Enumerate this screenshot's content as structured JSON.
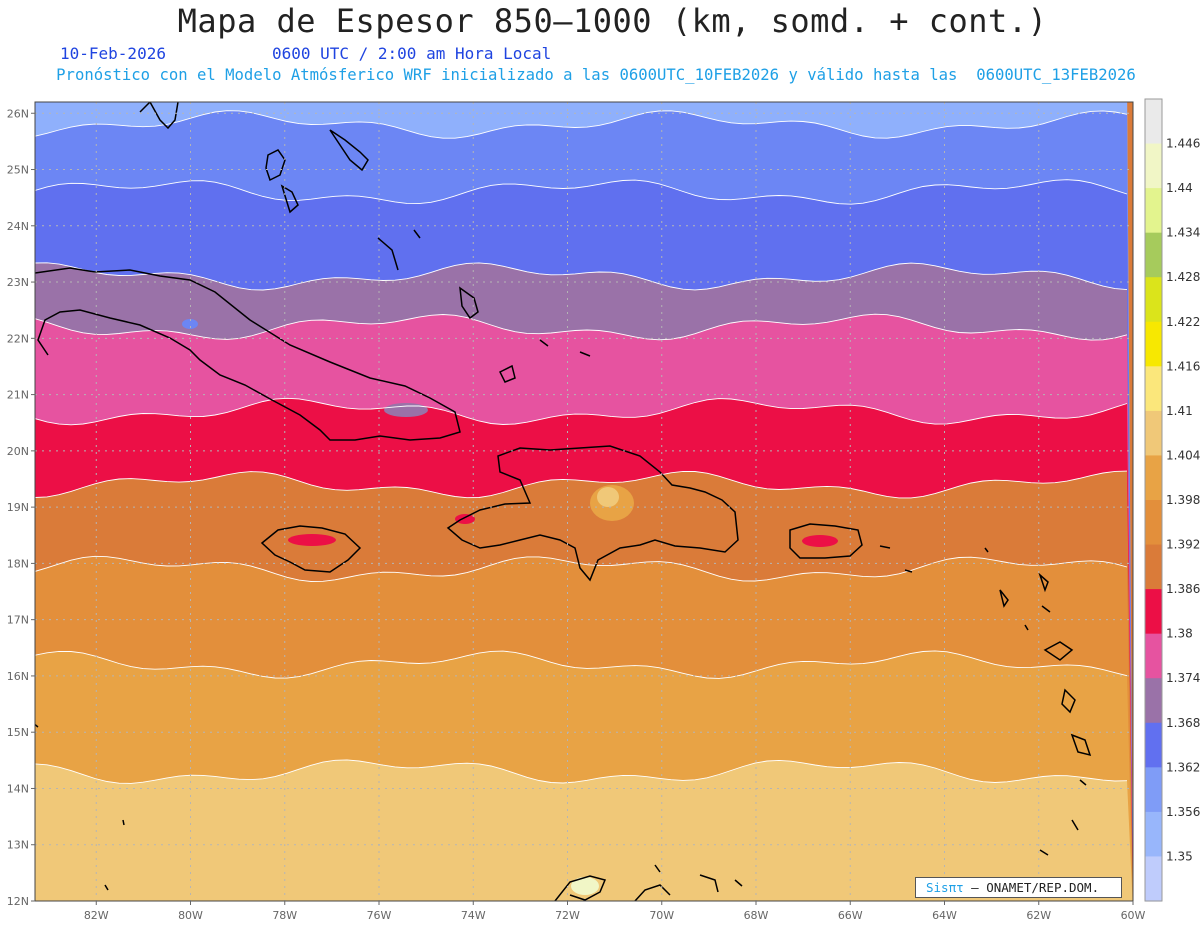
{
  "title": "Mapa de Espesor 850—1000 (km, somd. + cont.)",
  "date": "10-Feb-2026",
  "time": "0600 UTC / 2:00 am Hora Local",
  "subtitle": "Pronóstico con el Modelo Atmósferico WRF inicializado a las 0600UTC_10FEB2026 y válido hasta las  0600UTC_13FEB2026",
  "credit": {
    "sis": "Sisπτ",
    "org": " – ONAMET/REP.DOM."
  },
  "axes": {
    "lat_labels": [
      "26N",
      "25N",
      "24N",
      "23N",
      "22N",
      "21N",
      "20N",
      "19N",
      "18N",
      "17N",
      "16N",
      "15N",
      "14N",
      "13N",
      "12N"
    ],
    "lon_labels": [
      "82W",
      "80W",
      "78W",
      "76W",
      "74W",
      "72W",
      "70W",
      "68W",
      "66W",
      "64W",
      "62W",
      "60W"
    ],
    "lon_range": [
      -83.3,
      -60
    ],
    "lat_range": [
      12,
      26.2
    ],
    "grid": true
  },
  "colorbar": {
    "levels": [
      "1.446",
      "1.44",
      "1.434",
      "1.428",
      "1.422",
      "1.416",
      "1.41",
      "1.404",
      "1.398",
      "1.392",
      "1.386",
      "1.38",
      "1.374",
      "1.368",
      "1.362",
      "1.356",
      "1.35"
    ],
    "colors": [
      "#eaeaea",
      "#f1f6c6",
      "#e3f48e",
      "#a6cb5c",
      "#dbe41b",
      "#f7e801",
      "#fbe77b",
      "#f0c878",
      "#e8a345",
      "#e38f3b",
      "#da7b39",
      "#ec0f46",
      "#e653a0",
      "#9a72a8",
      "#6170f0",
      "#7f9cf7",
      "#98b6fb",
      "#bfccfc"
    ],
    "bands": [
      {
        "lat": 26.5,
        "color": "#8fb0fc"
      },
      {
        "lat": 25.8,
        "color": "#6c86f4"
      },
      {
        "lat": 24.6,
        "color": "#6070ef"
      },
      {
        "lat": 23.1,
        "color": "#9a72a8"
      },
      {
        "lat": 22.2,
        "color": "#e653a0"
      },
      {
        "lat": 20.7,
        "color": "#ec0f46"
      },
      {
        "lat": 19.4,
        "color": "#da7b39"
      },
      {
        "lat": 17.9,
        "color": "#e38f3b"
      },
      {
        "lat": 16.2,
        "color": "#e8a345"
      },
      {
        "lat": 14.3,
        "color": "#f0c878"
      }
    ]
  }
}
